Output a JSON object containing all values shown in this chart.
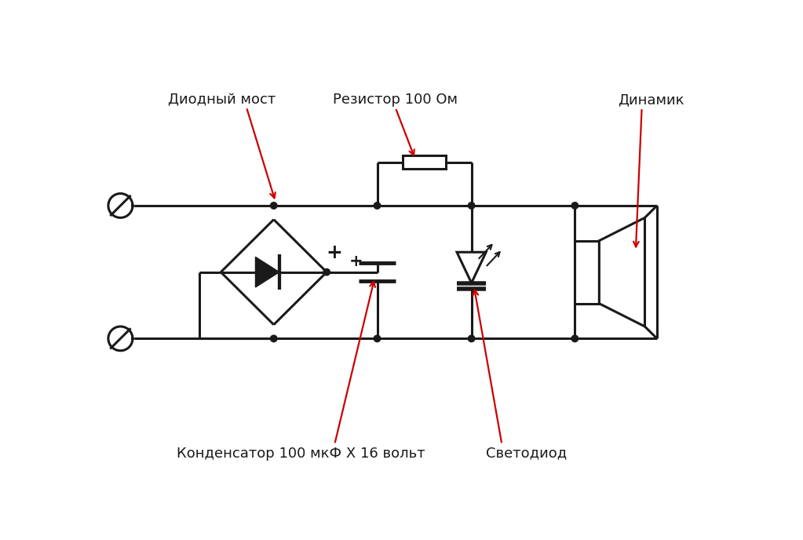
{
  "bg_color": "#ffffff",
  "line_color": "#1a1a1a",
  "red_color": "#cc0000",
  "label_diode_bridge": "Диодный мост",
  "label_resistor": "Резистор 100 Ом",
  "label_speaker": "Динамик",
  "label_capacitor": "Конденсатор 100 мкФ Х 16 вольт",
  "label_led": "Светодиод",
  "lw": 2.2,
  "dot_r": 0.055
}
